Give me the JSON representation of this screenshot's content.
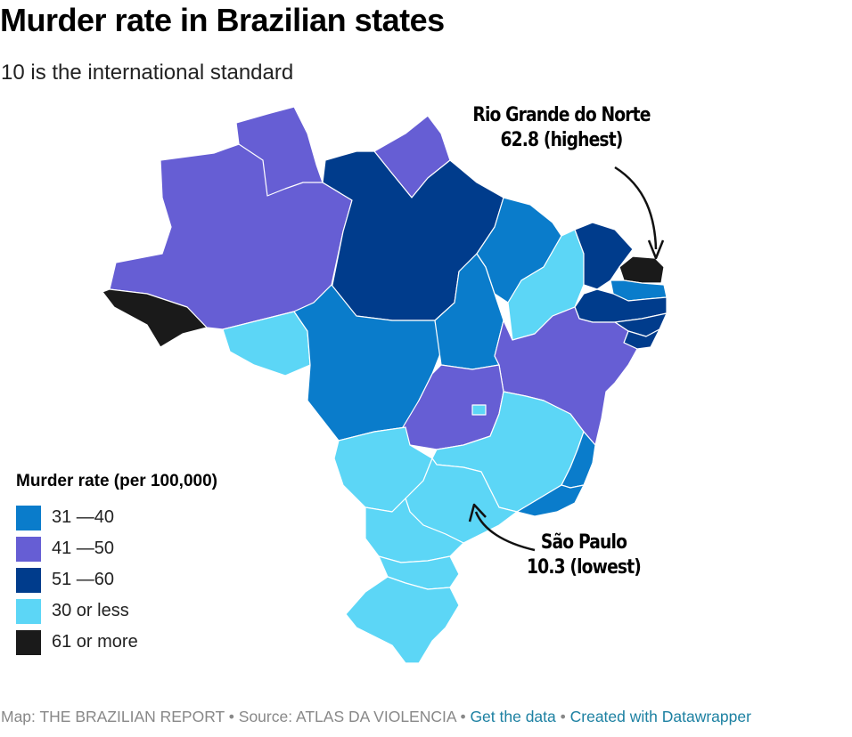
{
  "header": {
    "title": "Murder rate in Brazilian states",
    "subtitle": "10 is the international standard"
  },
  "colors": {
    "range_31_40": "#0a7ccb",
    "range_41_50": "#665ed4",
    "range_51_60": "#003c8c",
    "range_30_or_less": "#5cd6f6",
    "range_61_or_more": "#1a1a1a",
    "border": "#ffffff"
  },
  "callouts": {
    "highest": {
      "state": "Rio Grande do Norte",
      "value_text": "62.8 (highest)"
    },
    "lowest": {
      "state": "São Paulo",
      "value_text": "10.3 (lowest)"
    }
  },
  "legend": {
    "title": "Murder rate (per 100,000)",
    "items": [
      {
        "label": "31 —40",
        "color": "#0a7ccb"
      },
      {
        "label": "41 —50",
        "color": "#665ed4"
      },
      {
        "label": "51 —60",
        "color": "#003c8c"
      },
      {
        "label": "30 or less",
        "color": "#5cd6f6"
      },
      {
        "label": "61 or more",
        "color": "#1a1a1a"
      }
    ]
  },
  "footer": {
    "map_credit": "Map: THE BRAZILIAN REPORT",
    "separator": " • ",
    "source": "Source: ATLAS DA VIOLENCIA",
    "get_data": "Get the data",
    "created_with": "Created with Datawrapper"
  }
}
